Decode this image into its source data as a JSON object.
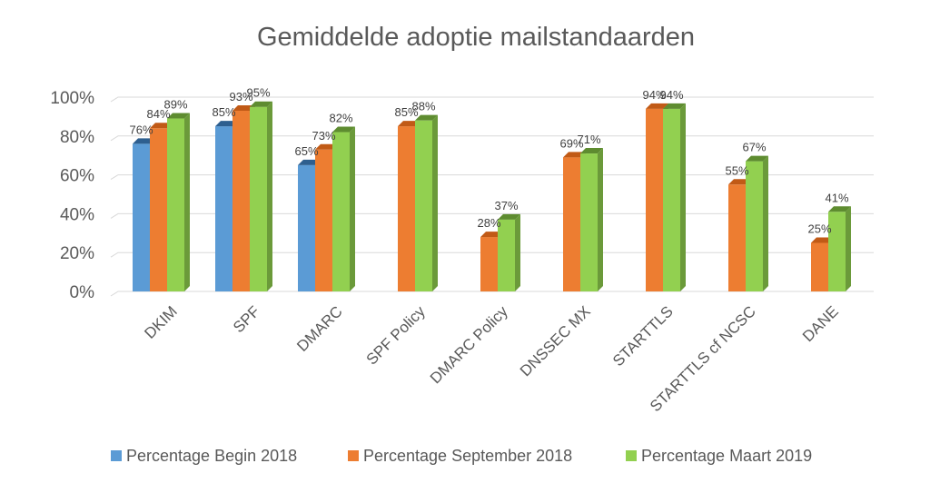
{
  "chart_data": {
    "type": "bar",
    "title": "Gemiddelde adoptie mailstandaarden",
    "xlabel": "",
    "ylabel": "",
    "ylim": [
      0,
      100
    ],
    "yticks": [
      "0%",
      "20%",
      "40%",
      "60%",
      "80%",
      "100%"
    ],
    "grid": true,
    "legend_position": "bottom",
    "categories": [
      "DKIM",
      "SPF",
      "DMARC",
      "SPF Policy",
      "DMARC Policy",
      "DNSSEC MX",
      "STARTTLS",
      "STARTTLS cf NCSC",
      "DANE"
    ],
    "series": [
      {
        "name": "Percentage Begin 2018",
        "color": "#5B9BD5",
        "side": "#41719C",
        "top": "#2E5F8F",
        "values": [
          76,
          85,
          65,
          null,
          null,
          null,
          null,
          null,
          null
        ]
      },
      {
        "name": "Percentage September 2018",
        "color": "#ED7D31",
        "side": "#AE5A21",
        "top": "#C15A16",
        "values": [
          84,
          93,
          73,
          85,
          28,
          69,
          94,
          55,
          25
        ]
      },
      {
        "name": "Percentage Maart 2019",
        "color": "#92D050",
        "side": "#6B9A3A",
        "top": "#5E8C30",
        "values": [
          89,
          95,
          82,
          88,
          37,
          71,
          94,
          67,
          41
        ]
      }
    ],
    "data_labels": [
      [
        "76%",
        "85%",
        "65%",
        null,
        null,
        null,
        null,
        null,
        null
      ],
      [
        "84%",
        "93%",
        "73%",
        "85%",
        "28%",
        "69%",
        "94%",
        "55%",
        "25%"
      ],
      [
        "89%",
        "95%",
        "82%",
        "88%",
        "37%",
        "71%",
        "94%",
        "67%",
        "41%"
      ]
    ]
  }
}
